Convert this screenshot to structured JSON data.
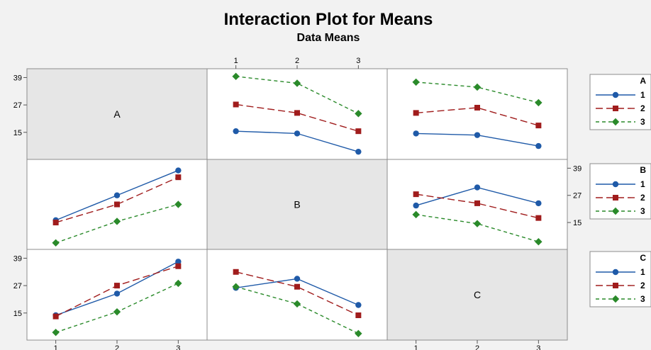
{
  "chart_data": {
    "type": "line",
    "title": "Interaction Plot for Means",
    "subtitle": "Data Means",
    "factors": [
      "A",
      "B",
      "C"
    ],
    "levels": [
      "1",
      "2",
      "3"
    ],
    "ylim": [
      5,
      41
    ],
    "yticks": [
      "15",
      "27",
      "39"
    ],
    "series_colors": [
      "#1f5aa8",
      "#a01c1c",
      "#2a8a2a"
    ],
    "grid": false,
    "panels": [
      {
        "row": "A",
        "col": "B",
        "series": [
          {
            "name": "1",
            "values": [
              15.5,
              14.5,
              6.5
            ]
          },
          {
            "name": "2",
            "values": [
              27.2,
              23.5,
              15.5
            ]
          },
          {
            "name": "3",
            "values": [
              39.5,
              36.5,
              23.2
            ]
          }
        ]
      },
      {
        "row": "A",
        "col": "C",
        "series": [
          {
            "name": "1",
            "values": [
              14.5,
              13.8,
              9.0
            ]
          },
          {
            "name": "2",
            "values": [
              23.5,
              25.8,
              18.0
            ]
          },
          {
            "name": "3",
            "values": [
              37.0,
              34.8,
              28.0
            ]
          }
        ]
      },
      {
        "row": "B",
        "col": "A",
        "series": [
          {
            "name": "1",
            "values": [
              16.0,
              27.0,
              38.0
            ]
          },
          {
            "name": "2",
            "values": [
              15.0,
              23.0,
              35.0
            ]
          },
          {
            "name": "3",
            "values": [
              6.0,
              15.5,
              23.0
            ]
          }
        ]
      },
      {
        "row": "B",
        "col": "C",
        "series": [
          {
            "name": "1",
            "values": [
              22.5,
              30.5,
              23.5
            ]
          },
          {
            "name": "2",
            "values": [
              27.5,
              23.5,
              17.0
            ]
          },
          {
            "name": "3",
            "values": [
              18.5,
              14.5,
              6.5
            ]
          }
        ]
      },
      {
        "row": "C",
        "col": "A",
        "series": [
          {
            "name": "1",
            "values": [
              14.0,
              23.5,
              37.5
            ]
          },
          {
            "name": "2",
            "values": [
              13.5,
              27.0,
              35.5
            ]
          },
          {
            "name": "3",
            "values": [
              6.5,
              15.5,
              28.0
            ]
          }
        ]
      },
      {
        "row": "C",
        "col": "B",
        "series": [
          {
            "name": "1",
            "values": [
              26.0,
              30.0,
              18.5
            ]
          },
          {
            "name": "2",
            "values": [
              33.0,
              26.5,
              14.0
            ]
          },
          {
            "name": "3",
            "values": [
              26.5,
              19.0,
              6.0
            ]
          }
        ]
      }
    ],
    "legends": [
      {
        "title": "A",
        "items": [
          "1",
          "2",
          "3"
        ]
      },
      {
        "title": "B",
        "items": [
          "1",
          "2",
          "3"
        ]
      },
      {
        "title": "C",
        "items": [
          "1",
          "2",
          "3"
        ]
      }
    ]
  }
}
